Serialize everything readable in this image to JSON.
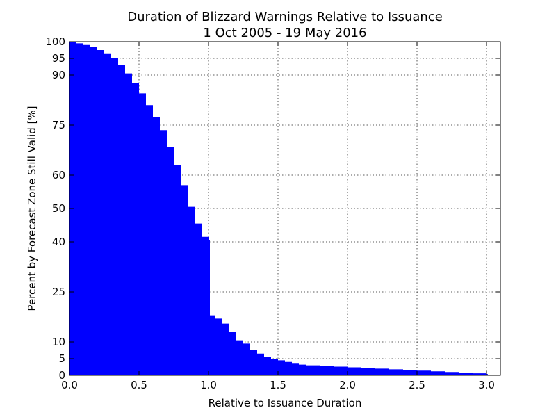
{
  "chart_data": {
    "type": "area",
    "title": "Duration of Blizzard Warnings Relative to Issuance",
    "subtitle": "1 Oct 2005 - 19 May 2016",
    "xlabel": "Relative to Issuance Duration",
    "ylabel": "Percent by Forecast Zone Still Valid [%]",
    "xlim": [
      0.0,
      3.1
    ],
    "ylim": [
      0,
      100
    ],
    "x_ticks": [
      0.0,
      0.5,
      1.0,
      1.5,
      2.0,
      2.5,
      3.0
    ],
    "x_tick_labels": [
      "0.0",
      "0.5",
      "1.0",
      "1.5",
      "2.0",
      "2.5",
      "3.0"
    ],
    "y_ticks": [
      0,
      5,
      10,
      25,
      40,
      50,
      60,
      75,
      90,
      95,
      100
    ],
    "y_tick_labels": [
      "0",
      "5",
      "10",
      "25",
      "40",
      "50",
      "60",
      "75",
      "90",
      "95",
      "100"
    ],
    "grid": true,
    "fill_color": "#0000ff",
    "series": [
      {
        "x": [
          0.0,
          0.05,
          0.1,
          0.15,
          0.2,
          0.25,
          0.3,
          0.35,
          0.4,
          0.45,
          0.5,
          0.55,
          0.6,
          0.65,
          0.7,
          0.75,
          0.8,
          0.85,
          0.9,
          0.95,
          1.0,
          1.01,
          1.05,
          1.1,
          1.15,
          1.2,
          1.25,
          1.3,
          1.35,
          1.4,
          1.45,
          1.5,
          1.55,
          1.6,
          1.65,
          1.7,
          1.8,
          1.9,
          2.0,
          2.1,
          2.2,
          2.3,
          2.4,
          2.5,
          2.6,
          2.7,
          2.8,
          2.9,
          3.0,
          3.01
        ],
        "y": [
          100,
          99.5,
          99,
          98.5,
          97.5,
          96.5,
          95,
          93,
          90.5,
          87.5,
          84.5,
          81,
          77.5,
          73.5,
          68.5,
          63,
          57,
          50.5,
          45.5,
          41.5,
          40.5,
          18,
          17,
          15.5,
          13,
          10.5,
          9.5,
          7.5,
          6.5,
          5.5,
          5,
          4.5,
          4,
          3.5,
          3.2,
          3.0,
          2.8,
          2.6,
          2.4,
          2.2,
          2.0,
          1.8,
          1.6,
          1.4,
          1.2,
          1.0,
          0.8,
          0.6,
          0.4,
          0
        ]
      }
    ]
  }
}
